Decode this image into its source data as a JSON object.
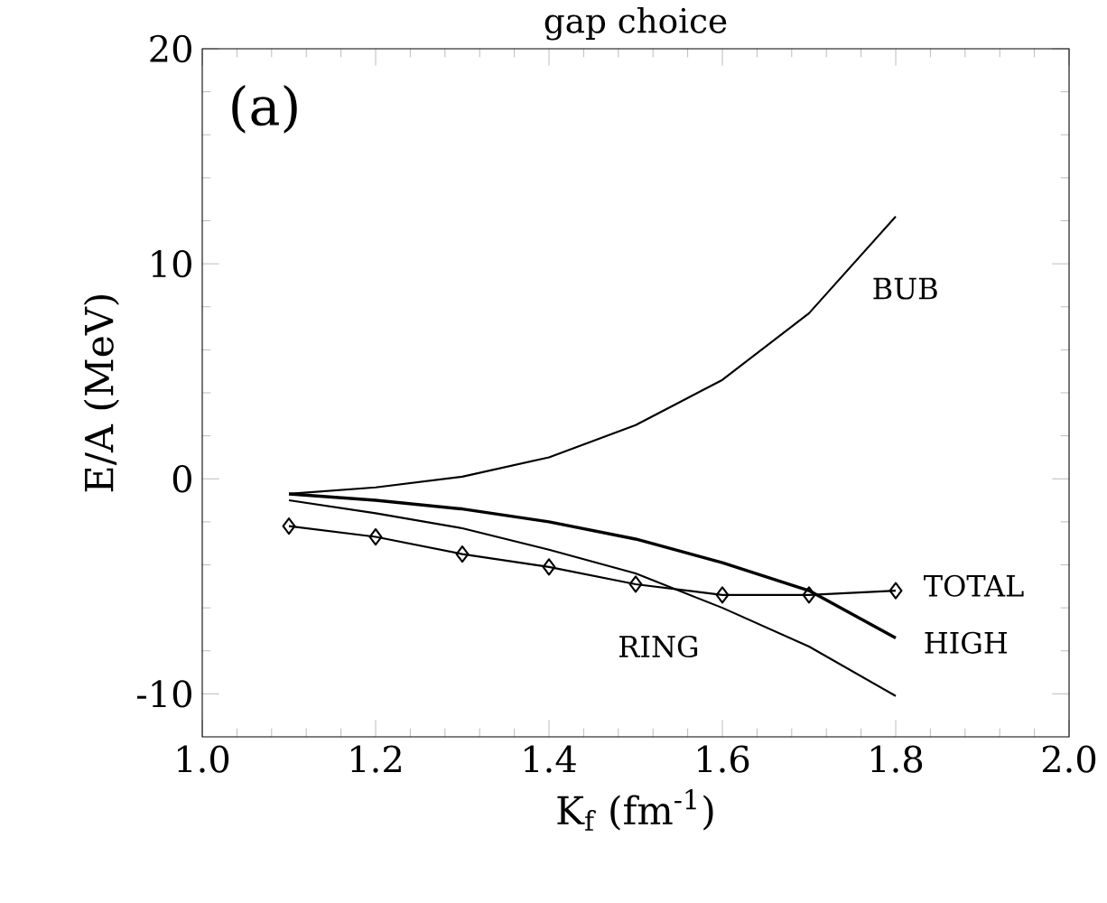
{
  "chart_data": {
    "type": "line",
    "title": "gap choice",
    "xlabel": "K$_{f}$ (fm$^{-1}$)",
    "ylabel": "E/A (MeV)",
    "x": [
      1.1,
      1.2,
      1.3,
      1.4,
      1.5,
      1.6,
      1.7,
      1.8
    ],
    "series": [
      {
        "name": "BUB",
        "color": "#000000",
        "values": [
          -0.7,
          -0.4,
          0.1,
          1.0,
          2.5,
          4.6,
          7.7,
          12.2
        ]
      },
      {
        "name": "HIGH",
        "color": "#000000",
        "values": [
          -0.7,
          -1.0,
          -1.4,
          -2.0,
          -2.8,
          -3.9,
          -5.2,
          -7.4
        ]
      },
      {
        "name": "RING",
        "color": "#000000",
        "values": [
          -1.0,
          -1.6,
          -2.3,
          -3.3,
          -4.4,
          -6.0,
          -7.8,
          -10.1
        ]
      },
      {
        "name": "TOTAL",
        "color": "#000000",
        "marker": "diamond",
        "values": [
          -2.2,
          -2.7,
          -3.5,
          -4.1,
          -4.9,
          -5.4,
          -5.4,
          -5.2
        ]
      }
    ],
    "marker": "none",
    "line_style": "solid",
    "grid": false,
    "legend": false,
    "xlim": [
      1.0,
      2.0
    ],
    "ylim": [
      -12,
      20
    ],
    "xticks": [
      {
        "value": 1.0,
        "label": "1.0"
      },
      1.2,
      1.4,
      1.6,
      1.8,
      {
        "value": 2.0,
        "label": "2.0"
      }
    ],
    "yticks": [
      -10,
      0,
      10,
      20
    ],
    "annotations": [
      "(a)"
    ]
  }
}
